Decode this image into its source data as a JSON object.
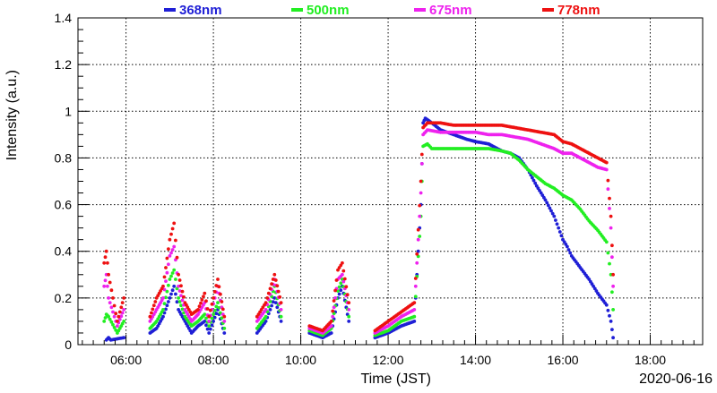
{
  "chart_data": {
    "type": "scatter",
    "xlabel": "Time (JST)",
    "ylabel": "Intensity (a.u.)",
    "date_label": "2020-06-16",
    "xlim_hours": [
      4.9,
      19.2
    ],
    "ylim": [
      0,
      1.4
    ],
    "x_ticks": [
      {
        "hour": 6,
        "label": "06:00"
      },
      {
        "hour": 8,
        "label": "08:00"
      },
      {
        "hour": 10,
        "label": "10:00"
      },
      {
        "hour": 12,
        "label": "12:00"
      },
      {
        "hour": 14,
        "label": "14:00"
      },
      {
        "hour": 16,
        "label": "16:00"
      },
      {
        "hour": 18,
        "label": "18:00"
      }
    ],
    "y_ticks": [
      {
        "value": 0,
        "label": "0"
      },
      {
        "value": 0.2,
        "label": "0.2"
      },
      {
        "value": 0.4,
        "label": "0.4"
      },
      {
        "value": 0.6,
        "label": "0.6"
      },
      {
        "value": 0.8,
        "label": "0.8"
      },
      {
        "value": 1.0,
        "label": "1"
      },
      {
        "value": 1.2,
        "label": "1.2"
      },
      {
        "value": 1.4,
        "label": "1.4"
      }
    ],
    "grid": true,
    "legend_position": "top",
    "series": [
      {
        "name": "368nm",
        "color": "#1f1fd6",
        "points": [
          [
            5.55,
            0.02
          ],
          [
            5.6,
            0.03
          ],
          [
            5.65,
            0.02
          ],
          [
            5.95,
            0.03
          ],
          [
            6.55,
            0.05
          ],
          [
            6.7,
            0.07
          ],
          [
            6.85,
            0.12
          ],
          [
            7.0,
            0.2
          ],
          [
            7.1,
            0.25
          ],
          [
            7.2,
            0.15
          ],
          [
            7.35,
            0.1
          ],
          [
            7.5,
            0.05
          ],
          [
            7.65,
            0.08
          ],
          [
            7.8,
            0.1
          ],
          [
            7.9,
            0.05
          ],
          [
            8.1,
            0.15
          ],
          [
            8.25,
            0.05
          ],
          [
            9.0,
            0.05
          ],
          [
            9.2,
            0.1
          ],
          [
            9.4,
            0.2
          ],
          [
            9.55,
            0.1
          ],
          [
            10.2,
            0.05
          ],
          [
            10.5,
            0.03
          ],
          [
            10.7,
            0.05
          ],
          [
            10.85,
            0.2
          ],
          [
            10.95,
            0.25
          ],
          [
            11.1,
            0.1
          ],
          [
            11.7,
            0.03
          ],
          [
            12.0,
            0.05
          ],
          [
            12.3,
            0.08
          ],
          [
            12.6,
            0.1
          ],
          [
            12.75,
            0.6
          ],
          [
            12.8,
            0.95
          ],
          [
            12.85,
            0.97
          ],
          [
            13.0,
            0.95
          ],
          [
            13.2,
            0.92
          ],
          [
            13.5,
            0.9
          ],
          [
            13.8,
            0.88
          ],
          [
            14.0,
            0.87
          ],
          [
            14.3,
            0.86
          ],
          [
            14.6,
            0.83
          ],
          [
            14.8,
            0.82
          ],
          [
            15.0,
            0.8
          ],
          [
            15.2,
            0.75
          ],
          [
            15.4,
            0.68
          ],
          [
            15.6,
            0.62
          ],
          [
            15.8,
            0.55
          ],
          [
            15.9,
            0.5
          ],
          [
            16.0,
            0.45
          ],
          [
            16.1,
            0.42
          ],
          [
            16.2,
            0.38
          ],
          [
            16.4,
            0.33
          ],
          [
            16.6,
            0.28
          ],
          [
            16.8,
            0.22
          ],
          [
            17.0,
            0.17
          ],
          [
            17.1,
            0.1
          ],
          [
            17.15,
            0.03
          ]
        ]
      },
      {
        "name": "500nm",
        "color": "#22ee22",
        "points": [
          [
            5.5,
            0.1
          ],
          [
            5.55,
            0.13
          ],
          [
            5.6,
            0.12
          ],
          [
            5.8,
            0.05
          ],
          [
            5.95,
            0.1
          ],
          [
            6.55,
            0.07
          ],
          [
            6.7,
            0.1
          ],
          [
            6.85,
            0.15
          ],
          [
            7.0,
            0.28
          ],
          [
            7.1,
            0.32
          ],
          [
            7.2,
            0.2
          ],
          [
            7.35,
            0.12
          ],
          [
            7.5,
            0.08
          ],
          [
            7.65,
            0.1
          ],
          [
            7.8,
            0.13
          ],
          [
            7.9,
            0.08
          ],
          [
            8.1,
            0.18
          ],
          [
            8.25,
            0.07
          ],
          [
            9.0,
            0.07
          ],
          [
            9.2,
            0.12
          ],
          [
            9.4,
            0.25
          ],
          [
            9.55,
            0.12
          ],
          [
            10.2,
            0.06
          ],
          [
            10.5,
            0.04
          ],
          [
            10.7,
            0.07
          ],
          [
            10.85,
            0.23
          ],
          [
            10.95,
            0.28
          ],
          [
            11.1,
            0.12
          ],
          [
            11.7,
            0.04
          ],
          [
            12.0,
            0.06
          ],
          [
            12.3,
            0.1
          ],
          [
            12.6,
            0.12
          ],
          [
            12.75,
            0.55
          ],
          [
            12.8,
            0.85
          ],
          [
            12.9,
            0.86
          ],
          [
            13.0,
            0.84
          ],
          [
            13.3,
            0.84
          ],
          [
            13.6,
            0.84
          ],
          [
            14.0,
            0.84
          ],
          [
            14.3,
            0.84
          ],
          [
            14.6,
            0.83
          ],
          [
            14.8,
            0.82
          ],
          [
            15.0,
            0.79
          ],
          [
            15.2,
            0.75
          ],
          [
            15.4,
            0.72
          ],
          [
            15.6,
            0.69
          ],
          [
            15.8,
            0.67
          ],
          [
            16.0,
            0.64
          ],
          [
            16.2,
            0.62
          ],
          [
            16.4,
            0.58
          ],
          [
            16.6,
            0.53
          ],
          [
            16.8,
            0.49
          ],
          [
            17.0,
            0.44
          ],
          [
            17.1,
            0.3
          ],
          [
            17.15,
            0.15
          ]
        ]
      },
      {
        "name": "675nm",
        "color": "#ee22ee",
        "points": [
          [
            5.5,
            0.25
          ],
          [
            5.55,
            0.3
          ],
          [
            5.6,
            0.2
          ],
          [
            5.8,
            0.08
          ],
          [
            5.95,
            0.15
          ],
          [
            6.55,
            0.1
          ],
          [
            6.7,
            0.15
          ],
          [
            6.85,
            0.2
          ],
          [
            7.0,
            0.38
          ],
          [
            7.1,
            0.42
          ],
          [
            7.2,
            0.25
          ],
          [
            7.35,
            0.15
          ],
          [
            7.5,
            0.1
          ],
          [
            7.65,
            0.13
          ],
          [
            7.8,
            0.18
          ],
          [
            7.9,
            0.1
          ],
          [
            8.1,
            0.25
          ],
          [
            8.25,
            0.1
          ],
          [
            9.0,
            0.1
          ],
          [
            9.2,
            0.15
          ],
          [
            9.4,
            0.28
          ],
          [
            9.55,
            0.15
          ],
          [
            10.2,
            0.07
          ],
          [
            10.5,
            0.05
          ],
          [
            10.7,
            0.08
          ],
          [
            10.85,
            0.28
          ],
          [
            10.95,
            0.3
          ],
          [
            11.1,
            0.15
          ],
          [
            11.7,
            0.05
          ],
          [
            12.0,
            0.08
          ],
          [
            12.3,
            0.12
          ],
          [
            12.6,
            0.15
          ],
          [
            12.75,
            0.65
          ],
          [
            12.8,
            0.9
          ],
          [
            12.9,
            0.92
          ],
          [
            13.2,
            0.91
          ],
          [
            13.5,
            0.91
          ],
          [
            13.8,
            0.91
          ],
          [
            14.0,
            0.91
          ],
          [
            14.3,
            0.9
          ],
          [
            14.6,
            0.9
          ],
          [
            14.9,
            0.89
          ],
          [
            15.2,
            0.88
          ],
          [
            15.5,
            0.86
          ],
          [
            15.8,
            0.84
          ],
          [
            16.0,
            0.82
          ],
          [
            16.2,
            0.82
          ],
          [
            16.4,
            0.8
          ],
          [
            16.6,
            0.78
          ],
          [
            16.8,
            0.76
          ],
          [
            17.0,
            0.75
          ],
          [
            17.1,
            0.5
          ],
          [
            17.15,
            0.25
          ]
        ]
      },
      {
        "name": "778nm",
        "color": "#ee1111",
        "points": [
          [
            5.5,
            0.35
          ],
          [
            5.55,
            0.4
          ],
          [
            5.6,
            0.3
          ],
          [
            5.8,
            0.1
          ],
          [
            5.95,
            0.2
          ],
          [
            6.55,
            0.12
          ],
          [
            6.7,
            0.2
          ],
          [
            6.85,
            0.25
          ],
          [
            7.0,
            0.45
          ],
          [
            7.1,
            0.52
          ],
          [
            7.2,
            0.3
          ],
          [
            7.35,
            0.18
          ],
          [
            7.5,
            0.13
          ],
          [
            7.65,
            0.15
          ],
          [
            7.8,
            0.22
          ],
          [
            7.9,
            0.12
          ],
          [
            8.1,
            0.28
          ],
          [
            8.25,
            0.12
          ],
          [
            9.0,
            0.12
          ],
          [
            9.2,
            0.18
          ],
          [
            9.4,
            0.3
          ],
          [
            9.55,
            0.18
          ],
          [
            10.2,
            0.08
          ],
          [
            10.5,
            0.06
          ],
          [
            10.7,
            0.1
          ],
          [
            10.85,
            0.32
          ],
          [
            10.95,
            0.35
          ],
          [
            11.1,
            0.18
          ],
          [
            11.7,
            0.06
          ],
          [
            12.0,
            0.1
          ],
          [
            12.3,
            0.14
          ],
          [
            12.6,
            0.18
          ],
          [
            12.75,
            0.7
          ],
          [
            12.8,
            0.93
          ],
          [
            12.9,
            0.95
          ],
          [
            13.2,
            0.95
          ],
          [
            13.5,
            0.94
          ],
          [
            13.8,
            0.94
          ],
          [
            14.0,
            0.94
          ],
          [
            14.3,
            0.94
          ],
          [
            14.6,
            0.94
          ],
          [
            14.9,
            0.93
          ],
          [
            15.2,
            0.92
          ],
          [
            15.5,
            0.91
          ],
          [
            15.8,
            0.9
          ],
          [
            16.0,
            0.87
          ],
          [
            16.2,
            0.86
          ],
          [
            16.4,
            0.84
          ],
          [
            16.6,
            0.82
          ],
          [
            16.8,
            0.8
          ],
          [
            17.0,
            0.78
          ],
          [
            17.1,
            0.55
          ],
          [
            17.15,
            0.3
          ]
        ]
      }
    ]
  }
}
